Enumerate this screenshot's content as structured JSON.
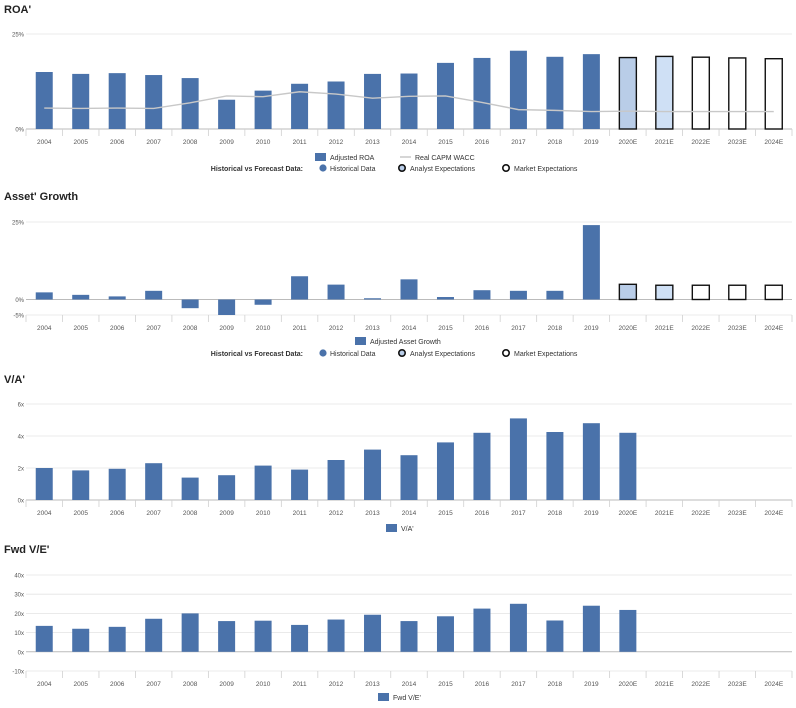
{
  "years": [
    "2004",
    "2005",
    "2006",
    "2007",
    "2008",
    "2009",
    "2010",
    "2011",
    "2012",
    "2013",
    "2014",
    "2015",
    "2016",
    "2017",
    "2018",
    "2019",
    "2020E",
    "2021E",
    "2022E",
    "2023E",
    "2024E"
  ],
  "legend_labels": {
    "hvf": "Historical vs Forecast Data:",
    "historical": "Historical Data",
    "analyst": "Analyst Expectations",
    "market": "Market Expectations"
  },
  "colors": {
    "bar": "#4a72aa",
    "analyst_fill": "#b9cde8",
    "analyst_fill_light": "#cfe0f5",
    "market_fill": "#ffffff",
    "wacc": "#c8c8c8",
    "grid": "#e4e4e4",
    "axis": "#bbbbbb"
  },
  "chart_data": [
    {
      "type": "bar",
      "title": "ROA'",
      "ylim": [
        0,
        25
      ],
      "ytick_values": [
        0,
        25
      ],
      "ytick_labels": [
        "0%",
        "25%"
      ],
      "series": [
        {
          "name": "Adjusted ROA",
          "values": [
            15,
            14.5,
            14.7,
            14.2,
            13.4,
            7.7,
            10.1,
            11.9,
            12.5,
            14.5,
            14.6,
            17.4,
            18.7,
            20.6,
            19.0,
            19.7,
            18.8,
            19.1,
            18.9,
            18.7,
            18.5
          ]
        },
        {
          "name": "Real CAPM WACC",
          "values": [
            5.5,
            5.4,
            5.5,
            5.4,
            6.9,
            8.7,
            8.5,
            9.8,
            9.2,
            8.1,
            8.6,
            8.7,
            7.0,
            5.1,
            4.9,
            4.6,
            4.7,
            4.6,
            4.6,
            4.6,
            4.6
          ]
        }
      ],
      "legend": [
        "Adjusted ROA",
        "Real CAPM WACC"
      ],
      "grid": true
    },
    {
      "type": "bar",
      "title": "Asset' Growth",
      "ylim": [
        -5,
        25
      ],
      "ytick_values": [
        -5,
        0,
        25
      ],
      "ytick_labels": [
        "-5%",
        "0%",
        "25%"
      ],
      "series": [
        {
          "name": "Adjusted Asset Growth",
          "values": [
            2.3,
            1.5,
            1.0,
            2.8,
            -2.8,
            -5.0,
            -1.7,
            7.5,
            4.8,
            0.4,
            6.5,
            0.8,
            3.0,
            2.8,
            2.8,
            24.0,
            4.9,
            4.6,
            4.6,
            4.6,
            4.6
          ]
        }
      ],
      "legend": [
        "Adjusted Asset Growth"
      ],
      "grid": true
    },
    {
      "type": "bar",
      "title": "V/A'",
      "ylim": [
        0,
        6
      ],
      "ytick_values": [
        0,
        2,
        4,
        6
      ],
      "ytick_labels": [
        "0x",
        "2x",
        "4x",
        "6x"
      ],
      "series": [
        {
          "name": "V/A'",
          "values": [
            2.0,
            1.85,
            1.95,
            2.3,
            1.4,
            1.55,
            2.15,
            1.9,
            2.5,
            3.15,
            2.8,
            3.6,
            4.2,
            5.1,
            4.25,
            4.8,
            4.2
          ]
        }
      ],
      "legend": [
        "V/A'"
      ],
      "grid": true
    },
    {
      "type": "bar",
      "title": "Fwd V/E'",
      "ylim": [
        -10,
        40
      ],
      "ytick_values": [
        -10,
        0,
        10,
        20,
        30,
        40
      ],
      "ytick_labels": [
        "-10x",
        "0x",
        "10x",
        "20x",
        "30x",
        "40x"
      ],
      "series": [
        {
          "name": "Fwd V/E'",
          "values": [
            13.5,
            12.0,
            13.0,
            17.2,
            20.0,
            16.0,
            16.2,
            14.0,
            16.8,
            19.3,
            16.0,
            18.5,
            22.5,
            25.0,
            16.3,
            24.0,
            21.8
          ]
        }
      ],
      "legend": [
        "Fwd V/E'"
      ],
      "grid": true
    }
  ]
}
